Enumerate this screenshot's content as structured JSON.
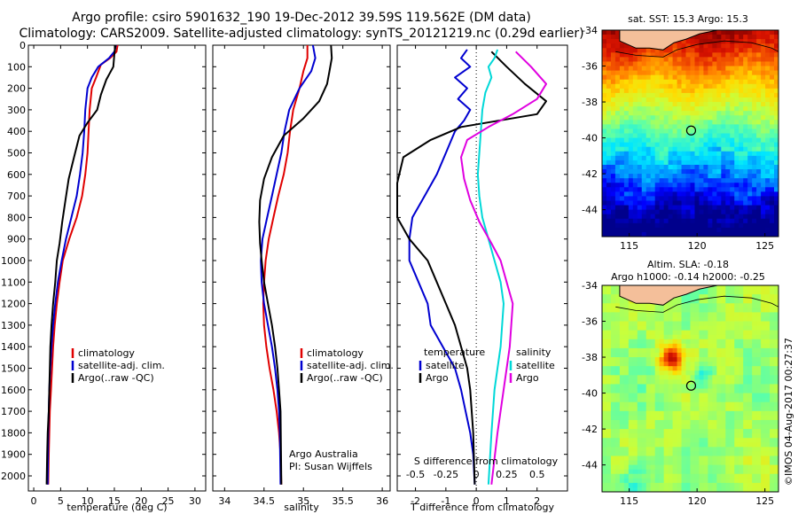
{
  "header": {
    "line1": "Argo profile: csiro 5901632_190 19-Dec-2012 39.59S 119.562E (DM data)",
    "line2": "Climatology: CARS2009. Satellite-adjusted climatology: synTS_20121219.nc (0.29d earlier)"
  },
  "colors": {
    "climatology": "#e00000",
    "satellite": "#0000d0",
    "argo": "#000000",
    "satellite_s": "#00d8d8",
    "argo_s": "#e000e0",
    "land": "#f4bf9a"
  },
  "chart_data": [
    {
      "type": "line",
      "name": "temperature-panel",
      "xlabel": "temperature (deg C)",
      "ylabel": "",
      "xlim": [
        -1,
        32
      ],
      "ylim": [
        2070,
        0
      ],
      "xticks": [
        0,
        5,
        10,
        15,
        20,
        25,
        30
      ],
      "yticks": [
        0,
        100,
        200,
        300,
        400,
        500,
        600,
        700,
        800,
        900,
        1000,
        1100,
        1200,
        1300,
        1400,
        1500,
        1600,
        1700,
        1800,
        1900,
        2000
      ],
      "legend": [
        "climatology",
        "satellite-adj. clim.",
        "Argo(..raw -QC)"
      ],
      "series": [
        {
          "name": "climatology",
          "x": [
            15.6,
            15.4,
            14.2,
            12.5,
            11.6,
            10.8,
            10.4,
            10.2,
            10.0,
            9.6,
            9.0,
            8.0,
            6.6,
            5.4,
            4.8,
            4.3,
            3.9,
            3.6,
            3.4,
            3.2,
            3.0,
            2.9,
            2.8,
            2.7
          ],
          "y": [
            0,
            30,
            60,
            90,
            150,
            200,
            300,
            400,
            500,
            600,
            700,
            800,
            900,
            1000,
            1100,
            1200,
            1300,
            1400,
            1500,
            1600,
            1700,
            1800,
            1900,
            2040
          ]
        },
        {
          "name": "satellite-adj. clim.",
          "x": [
            15.3,
            15.0,
            14.0,
            12.0,
            10.8,
            10.0,
            9.6,
            9.4,
            9.1,
            8.6,
            8.0,
            7.0,
            6.0,
            5.2,
            4.5,
            4.0,
            3.6,
            3.3,
            3.1,
            2.9,
            2.8,
            2.7,
            2.6
          ],
          "y": [
            0,
            30,
            60,
            100,
            150,
            200,
            300,
            400,
            500,
            600,
            700,
            800,
            900,
            1000,
            1100,
            1200,
            1300,
            1400,
            1500,
            1600,
            1700,
            1800,
            2040
          ]
        },
        {
          "name": "Argo",
          "x": [
            15.2,
            15.0,
            14.8,
            13.5,
            12.5,
            11.8,
            10.0,
            8.5,
            7.5,
            6.5,
            5.9,
            5.3,
            4.8,
            4.3,
            4.0,
            3.6,
            3.3,
            3.1,
            3.0,
            2.9,
            2.8,
            2.6,
            2.5,
            2.4
          ],
          "y": [
            0,
            40,
            100,
            160,
            230,
            300,
            360,
            420,
            520,
            620,
            720,
            820,
            920,
            1000,
            1100,
            1200,
            1300,
            1400,
            1500,
            1600,
            1700,
            1800,
            1900,
            2040
          ]
        }
      ]
    },
    {
      "type": "line",
      "name": "salinity-panel",
      "xlabel": "salinity",
      "xlim": [
        33.85,
        36.1
      ],
      "ylim": [
        2070,
        0
      ],
      "xticks": [
        34,
        34.5,
        35,
        35.5,
        36
      ],
      "legend": [
        "climatology",
        "satellite-adj. clim.",
        "Argo(..raw -QC)"
      ],
      "annotation": [
        "Argo Australia",
        "PI: Susan Wijffels"
      ],
      "series": [
        {
          "name": "climatology",
          "x": [
            35.05,
            35.05,
            35.0,
            34.95,
            34.87,
            34.83,
            34.8,
            34.75,
            34.68,
            34.62,
            34.56,
            34.52,
            34.5,
            34.49,
            34.5,
            34.53,
            34.57,
            34.62,
            34.66,
            34.69,
            34.71,
            34.72
          ],
          "y": [
            0,
            60,
            120,
            200,
            300,
            400,
            500,
            600,
            700,
            800,
            900,
            1000,
            1100,
            1200,
            1300,
            1400,
            1500,
            1600,
            1700,
            1800,
            1900,
            2040
          ]
        },
        {
          "name": "satellite-adj. clim.",
          "x": [
            35.12,
            35.15,
            35.1,
            34.95,
            34.82,
            34.76,
            34.72,
            34.66,
            34.6,
            34.54,
            34.48,
            34.46,
            34.47,
            34.5,
            34.55,
            34.6,
            34.64,
            34.67,
            34.69,
            34.7,
            34.71
          ],
          "y": [
            0,
            60,
            120,
            200,
            300,
            400,
            500,
            600,
            700,
            800,
            900,
            1000,
            1100,
            1200,
            1300,
            1400,
            1500,
            1600,
            1700,
            1800,
            2040
          ]
        },
        {
          "name": "Argo",
          "x": [
            35.35,
            35.36,
            35.33,
            35.3,
            35.2,
            35.0,
            34.75,
            34.6,
            34.5,
            34.45,
            34.44,
            34.45,
            34.47,
            34.5,
            34.55,
            34.6,
            34.64,
            34.67,
            34.69,
            34.71,
            34.72
          ],
          "y": [
            0,
            60,
            120,
            180,
            260,
            340,
            420,
            520,
            620,
            720,
            820,
            920,
            1000,
            1100,
            1200,
            1300,
            1400,
            1500,
            1600,
            1700,
            2040
          ]
        }
      ]
    },
    {
      "type": "line",
      "name": "difference-panel",
      "xlabel": "T difference from climatology",
      "xlabel_top": "S difference from climatology",
      "xlim": [
        -2.6,
        3.0
      ],
      "ylim": [
        2070,
        0
      ],
      "xticks": [
        -2,
        -1,
        0,
        1,
        2
      ],
      "xticks_s": [
        "-0.5",
        "-0.25",
        "0",
        "0.25",
        "0.5"
      ],
      "legend_t": {
        "title": "temperature",
        "items": [
          "satellite",
          "Argo"
        ]
      },
      "legend_s": {
        "title": "salinity",
        "items": [
          "satellite",
          "Argo"
        ]
      },
      "series": [
        {
          "name": "T satellite",
          "x": [
            -0.3,
            -0.5,
            -0.2,
            -0.7,
            -0.3,
            -0.6,
            -0.2,
            -0.4,
            -0.7,
            -1.0,
            -1.3,
            -1.7,
            -2.1,
            -2.2,
            -2.2,
            -1.9,
            -1.6,
            -1.5,
            -1.1,
            -0.7,
            -0.5,
            -0.35,
            -0.2,
            -0.1,
            -0.05
          ],
          "y": [
            20,
            60,
            100,
            150,
            200,
            250,
            300,
            350,
            400,
            500,
            600,
            700,
            800,
            900,
            1000,
            1100,
            1200,
            1300,
            1400,
            1500,
            1600,
            1700,
            1800,
            1900,
            2040
          ]
        },
        {
          "name": "T Argo",
          "x": [
            0.5,
            1.0,
            1.6,
            2.3,
            2.0,
            -0.5,
            -1.5,
            -2.4,
            -2.6,
            -2.6,
            -2.2,
            -1.6,
            -1.3,
            -1.0,
            -0.7,
            -0.5,
            -0.3,
            -0.2,
            -0.1,
            -0.05
          ],
          "y": [
            30,
            100,
            180,
            260,
            320,
            380,
            440,
            520,
            640,
            800,
            900,
            1000,
            1100,
            1200,
            1300,
            1400,
            1500,
            1600,
            1800,
            2040
          ]
        },
        {
          "name": "S satellite",
          "x": [
            0.7,
            0.6,
            0.4,
            0.5,
            0.3,
            0.2,
            0.15,
            0.1,
            0.05,
            0.1,
            0.2,
            0.4,
            0.6,
            0.8,
            0.9,
            0.85,
            0.8,
            0.7,
            0.6,
            0.5,
            0.4
          ],
          "y": [
            20,
            60,
            100,
            150,
            220,
            300,
            400,
            500,
            600,
            700,
            800,
            900,
            1000,
            1100,
            1200,
            1300,
            1400,
            1500,
            1600,
            1800,
            2040
          ]
        },
        {
          "name": "S Argo",
          "x": [
            1.3,
            1.8,
            2.3,
            2.0,
            1.2,
            0.4,
            -0.3,
            -0.5,
            -0.4,
            -0.2,
            0.1,
            0.5,
            0.8,
            1.0,
            1.2,
            1.1,
            0.9,
            0.7,
            0.5
          ],
          "y": [
            30,
            100,
            180,
            250,
            320,
            380,
            440,
            520,
            620,
            720,
            820,
            920,
            1000,
            1100,
            1200,
            1400,
            1600,
            1800,
            2040
          ]
        }
      ]
    },
    {
      "type": "heatmap",
      "name": "sst-map",
      "title": "sat. SST: 15.3 Argo: 15.3",
      "xticks": [
        115,
        120,
        125
      ],
      "yticks": [
        -34,
        -36,
        -38,
        -40,
        -42,
        -44
      ],
      "xlim": [
        113,
        126
      ],
      "ylim": [
        -45.5,
        -34
      ],
      "float_position": {
        "lon": 119.562,
        "lat": -39.59
      }
    },
    {
      "type": "heatmap",
      "name": "sla-map",
      "title": "Altim. SLA: -0.18",
      "subtitle": "Argo h1000: -0.14 h2000: -0.25",
      "xticks": [
        115,
        120,
        125
      ],
      "yticks": [
        -34,
        -36,
        -38,
        -40,
        -42,
        -44
      ],
      "xlim": [
        113,
        126
      ],
      "ylim": [
        -45.5,
        -34
      ],
      "float_position": {
        "lon": 119.562,
        "lat": -39.59
      }
    }
  ],
  "footer": {
    "credit": "©IMOS 04-Aug-2017 00:27:37"
  }
}
